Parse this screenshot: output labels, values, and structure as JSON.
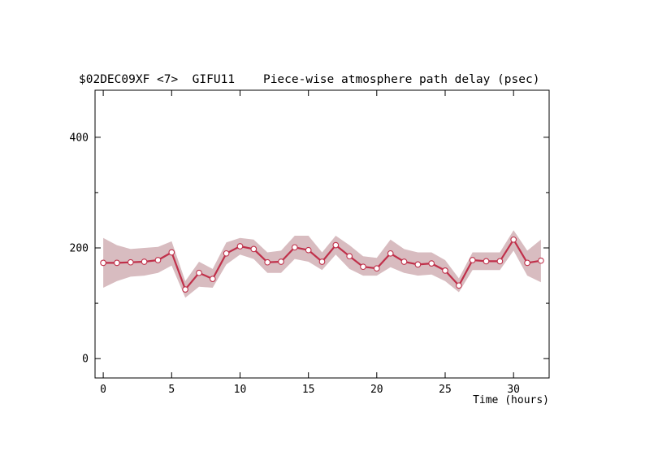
{
  "chart_data": {
    "type": "line",
    "title": "$02DEC09XF <7>  GIFU11    Piece-wise atmosphere path delay (psec)",
    "xlabel": "Time (hours)",
    "ylabel": "",
    "xlim": [
      -0.6,
      32.6
    ],
    "ylim": [
      -35,
      485
    ],
    "x_ticks": [
      0,
      5,
      10,
      15,
      20,
      25,
      30
    ],
    "y_ticks": [
      0,
      200,
      400
    ],
    "x_minor_ticks": [],
    "y_minor_ticks": [
      100,
      300
    ],
    "grid": false,
    "colors": {
      "line": "#c0304a",
      "band": "#d8bcc0",
      "marker_face": "#ffffff"
    },
    "series": [
      {
        "x": [
          0,
          1,
          2,
          3,
          4,
          5,
          6,
          7,
          8,
          9,
          10,
          11,
          12,
          13,
          14,
          15,
          16,
          17,
          18,
          19,
          20,
          21,
          22,
          23,
          24,
          25,
          26,
          27,
          28,
          29,
          30,
          31,
          32
        ],
        "y": [
          173,
          173,
          174,
          175,
          178,
          192,
          125,
          155,
          144,
          190,
          203,
          198,
          174,
          175,
          201,
          196,
          175,
          205,
          185,
          166,
          163,
          190,
          175,
          170,
          172,
          159,
          132,
          178,
          176,
          176,
          215,
          173,
          177
        ],
        "lower": [
          128,
          140,
          148,
          150,
          155,
          168,
          110,
          130,
          128,
          170,
          188,
          180,
          155,
          155,
          180,
          175,
          160,
          188,
          162,
          150,
          150,
          165,
          155,
          150,
          152,
          140,
          120,
          160,
          160,
          160,
          195,
          150,
          138
        ],
        "upper": [
          218,
          205,
          198,
          200,
          202,
          212,
          140,
          175,
          162,
          210,
          218,
          215,
          192,
          195,
          222,
          222,
          192,
          222,
          205,
          185,
          182,
          215,
          198,
          192,
          192,
          178,
          145,
          192,
          192,
          192,
          232,
          195,
          215
        ]
      }
    ]
  }
}
